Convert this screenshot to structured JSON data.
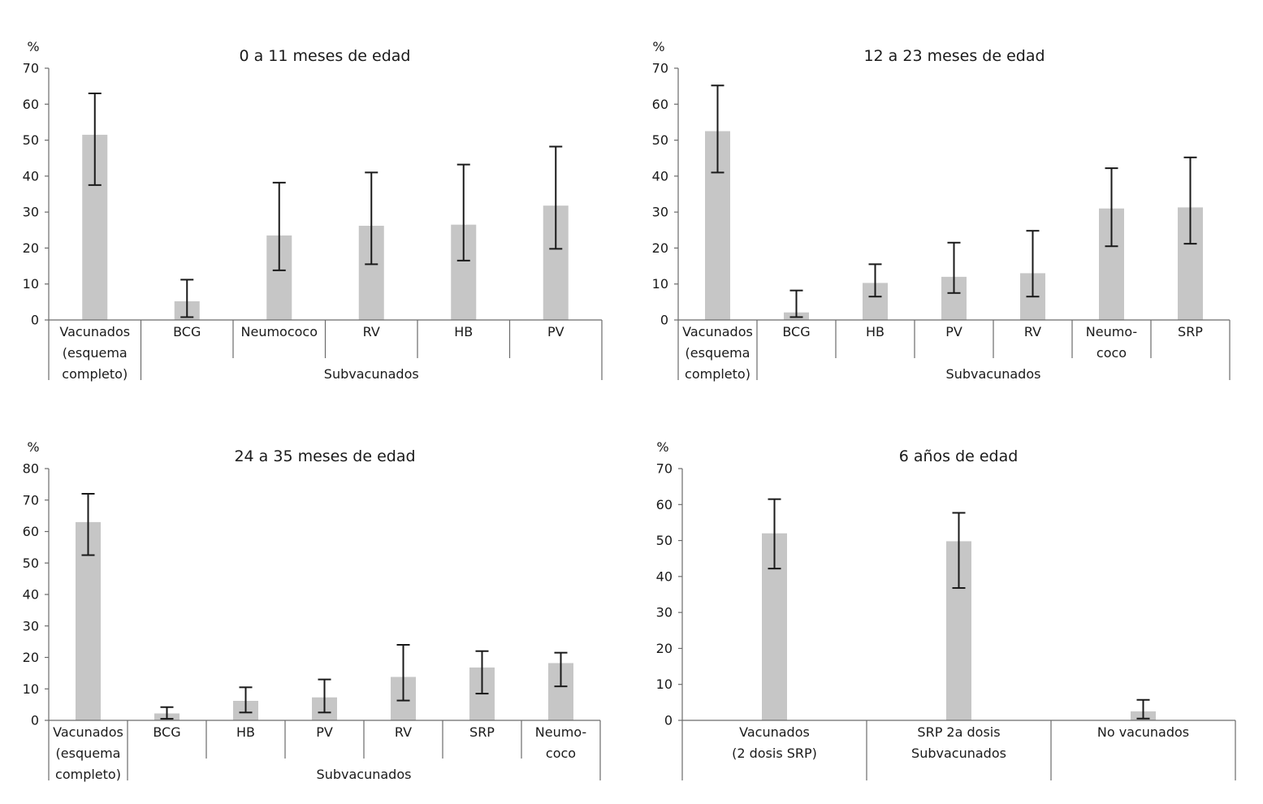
{
  "chart_data": [
    {
      "type": "bar",
      "title": "0 a 11 meses de edad",
      "ylabel": "%",
      "ylim": [
        0,
        70
      ],
      "yticks": [
        0,
        10,
        20,
        30,
        40,
        50,
        60,
        70
      ],
      "error_bars": true,
      "categories": [
        {
          "lines": [
            "Vacunados",
            "(esquema",
            "completo)"
          ],
          "value": 51.5,
          "low": 37.5,
          "high": 63
        },
        {
          "lines": [
            "BCG"
          ],
          "value": 5.2,
          "low": 0.8,
          "high": 11.2
        },
        {
          "lines": [
            "Neumococo"
          ],
          "value": 23.5,
          "low": 13.8,
          "high": 38.2
        },
        {
          "lines": [
            "RV"
          ],
          "value": 26.2,
          "low": 15.5,
          "high": 41
        },
        {
          "lines": [
            "HB"
          ],
          "value": 26.5,
          "low": 16.5,
          "high": 43.2
        },
        {
          "lines": [
            "PV"
          ],
          "value": 31.8,
          "low": 19.8,
          "high": 48.2
        }
      ],
      "group_label": "Subvacunados",
      "group_range": [
        1,
        5
      ]
    },
    {
      "type": "bar",
      "title": "12 a 23 meses de edad",
      "ylabel": "%",
      "ylim": [
        0,
        70
      ],
      "yticks": [
        0,
        10,
        20,
        30,
        40,
        50,
        60,
        70
      ],
      "error_bars": true,
      "categories": [
        {
          "lines": [
            "Vacunados",
            "(esquema",
            "completo)"
          ],
          "value": 52.5,
          "low": 41,
          "high": 65.2
        },
        {
          "lines": [
            "BCG"
          ],
          "value": 2.1,
          "low": 0.8,
          "high": 8.2
        },
        {
          "lines": [
            "HB"
          ],
          "value": 10.3,
          "low": 6.5,
          "high": 15.5
        },
        {
          "lines": [
            "PV"
          ],
          "value": 12,
          "low": 7.5,
          "high": 21.5
        },
        {
          "lines": [
            "RV"
          ],
          "value": 13,
          "low": 6.5,
          "high": 24.8
        },
        {
          "lines": [
            "Neumo-",
            "coco"
          ],
          "value": 31,
          "low": 20.5,
          "high": 42.2
        },
        {
          "lines": [
            "SRP"
          ],
          "value": 31.3,
          "low": 21.2,
          "high": 45.2
        }
      ],
      "group_label": "Subvacunados",
      "group_range": [
        1,
        6
      ]
    },
    {
      "type": "bar",
      "title": "24 a 35 meses de edad",
      "ylabel": "%",
      "ylim": [
        0,
        80
      ],
      "yticks": [
        0,
        10,
        20,
        30,
        40,
        50,
        60,
        70,
        80
      ],
      "error_bars": true,
      "categories": [
        {
          "lines": [
            "Vacunados",
            "(esquema",
            "completo)"
          ],
          "value": 63,
          "low": 52.5,
          "high": 72
        },
        {
          "lines": [
            "BCG"
          ],
          "value": 2.2,
          "low": 0.5,
          "high": 4.2
        },
        {
          "lines": [
            "HB"
          ],
          "value": 6.2,
          "low": 2.5,
          "high": 10.5
        },
        {
          "lines": [
            "PV"
          ],
          "value": 7.3,
          "low": 2.5,
          "high": 13
        },
        {
          "lines": [
            "RV"
          ],
          "value": 13.8,
          "low": 6.3,
          "high": 24
        },
        {
          "lines": [
            "SRP"
          ],
          "value": 16.8,
          "low": 8.5,
          "high": 22
        },
        {
          "lines": [
            "Neumo-",
            "coco"
          ],
          "value": 18.2,
          "low": 10.8,
          "high": 21.5
        }
      ],
      "group_label": "Subvacunados",
      "group_range": [
        1,
        6
      ]
    },
    {
      "type": "bar",
      "title": "6 años de edad",
      "ylabel": "%",
      "ylim": [
        0,
        70
      ],
      "yticks": [
        0,
        10,
        20,
        30,
        40,
        50,
        60,
        70
      ],
      "error_bars": true,
      "categories": [
        {
          "lines": [
            "Vacunados",
            "(2 dosis SRP)"
          ],
          "value": 52,
          "low": 42.2,
          "high": 61.5
        },
        {
          "lines": [
            "SRP 2a dosis",
            "Subvacunados"
          ],
          "value": 49.8,
          "low": 36.8,
          "high": 57.7
        },
        {
          "lines": [
            "No vacunados"
          ],
          "value": 2.5,
          "low": 0.5,
          "high": 5.7
        }
      ],
      "group_label": "",
      "group_range": null
    }
  ],
  "colors": {
    "bar": "#c6c6c6",
    "axis": "#6b6b6b",
    "error_bar": "#1a1a1a",
    "text": "#1a1a1a"
  }
}
